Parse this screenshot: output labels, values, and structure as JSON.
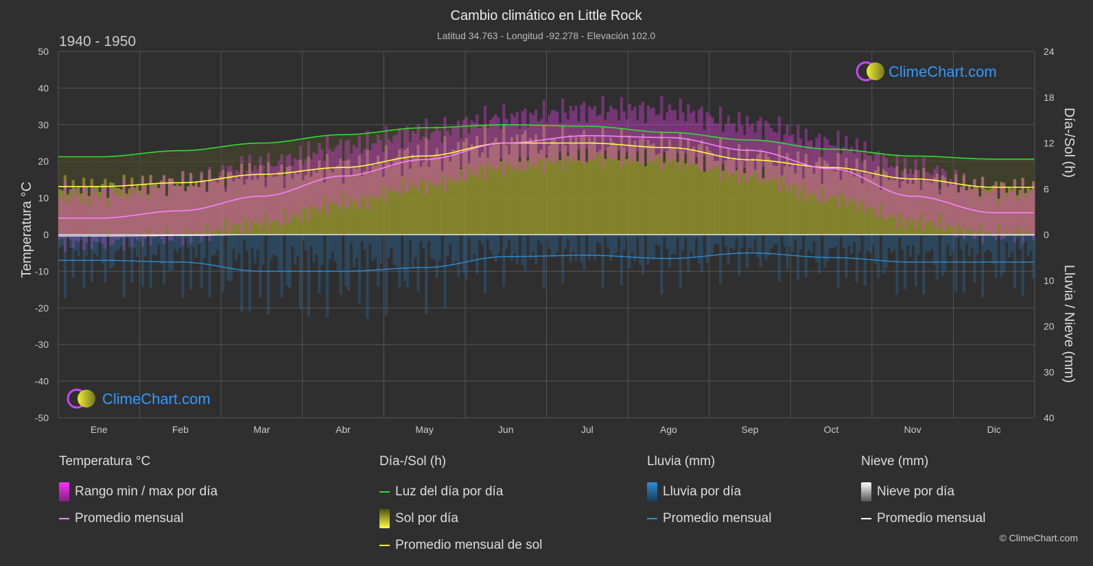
{
  "header": {
    "title": "Cambio climático en Little Rock",
    "subtitle": "Latitud 34.763 - Longitud -92.278 - Elevación 102.0",
    "period": "1940 - 1950"
  },
  "axes": {
    "left_label": "Temperatura °C",
    "right_top_label": "Día-/Sol (h)",
    "right_bottom_label": "Lluvia / Nieve (mm)"
  },
  "brand": {
    "logo_text": "ClimeChart.com",
    "copyright": "© ClimeChart.com"
  },
  "legend": {
    "temperature": {
      "title": "Temperatura °C",
      "range": "Rango min / max por día",
      "avg": "Promedio mensual"
    },
    "sun": {
      "title": "Día-/Sol (h)",
      "daylight": "Luz del día por día",
      "sun_daily": "Sol por día",
      "sun_avg": "Promedio mensual de sol"
    },
    "rain": {
      "title": "Lluvia (mm)",
      "rain_daily": "Lluvia por día",
      "avg": "Promedio mensual"
    },
    "snow": {
      "title": "Nieve (mm)",
      "snow_daily": "Nieve por día",
      "avg": "Promedio mensual"
    }
  },
  "colors": {
    "background": "#2f2f2f",
    "temp_range": "#e040e0",
    "temp_avg": "#ff80ff",
    "daylight": "#33dd33",
    "sunshine": "#b8b830",
    "sun_avg": "#ffff44",
    "rain": "#2a8fd8",
    "rain_avg": "#2a8fd8",
    "snow": "#dddddd",
    "snow_avg": "#ffffff",
    "brand": "#3399ff"
  },
  "chart_data": {
    "type": "area",
    "months": [
      "Ene",
      "Feb",
      "Mar",
      "Abr",
      "May",
      "Jun",
      "Jul",
      "Ago",
      "Sep",
      "Oct",
      "Nov",
      "Dic"
    ],
    "temperature_axis": {
      "ylim": [
        -50,
        50
      ],
      "ticks": [
        50,
        40,
        30,
        20,
        10,
        0,
        -10,
        -20,
        -30,
        -40,
        -50
      ]
    },
    "sun_axis": {
      "ylim": [
        0,
        24
      ],
      "ticks": [
        24,
        18,
        12,
        6,
        0
      ]
    },
    "precip_axis": {
      "ylim": [
        0,
        40
      ],
      "ticks": [
        0,
        10,
        20,
        30,
        40
      ]
    },
    "series": [
      {
        "name": "Promedio mensual",
        "group": "temperature",
        "unit": "°C",
        "values": [
          4.5,
          6.5,
          10.5,
          16,
          20.5,
          25,
          27,
          26.5,
          23,
          18,
          10.5,
          6
        ]
      },
      {
        "name": "Rango min / max por día (máx)",
        "group": "temperature",
        "unit": "°C",
        "values": [
          11,
          14,
          19,
          24,
          28,
          32,
          34,
          34,
          30,
          25,
          18,
          12
        ]
      },
      {
        "name": "Rango min / max por día (mín)",
        "group": "temperature",
        "unit": "°C",
        "values": [
          -2,
          -0.5,
          3,
          8.5,
          13.5,
          18.5,
          21,
          20.5,
          16,
          10,
          3.5,
          0
        ]
      },
      {
        "name": "Luz del día por día",
        "group": "sun",
        "unit": "h",
        "values": [
          10.2,
          11,
          12,
          13.1,
          14,
          14.4,
          14.2,
          13.4,
          12.4,
          11.2,
          10.3,
          9.9
        ]
      },
      {
        "name": "Promedio mensual de sol",
        "group": "sun",
        "unit": "h",
        "values": [
          6.3,
          6.8,
          7.9,
          8.8,
          10.3,
          12,
          12,
          11.4,
          9.8,
          8.8,
          7.3,
          6.2
        ]
      },
      {
        "name": "Promedio mensual (lluvia)",
        "group": "rain",
        "unit": "mm",
        "values": [
          5.6,
          6,
          8,
          8,
          7.2,
          4.8,
          4.5,
          5.2,
          4,
          5,
          6,
          6
        ]
      },
      {
        "name": "Promedio mensual (nieve)",
        "group": "snow",
        "unit": "mm",
        "values": [
          0.3,
          0.2,
          0,
          0,
          0,
          0,
          0,
          0,
          0,
          0,
          0,
          0.1
        ]
      }
    ]
  }
}
